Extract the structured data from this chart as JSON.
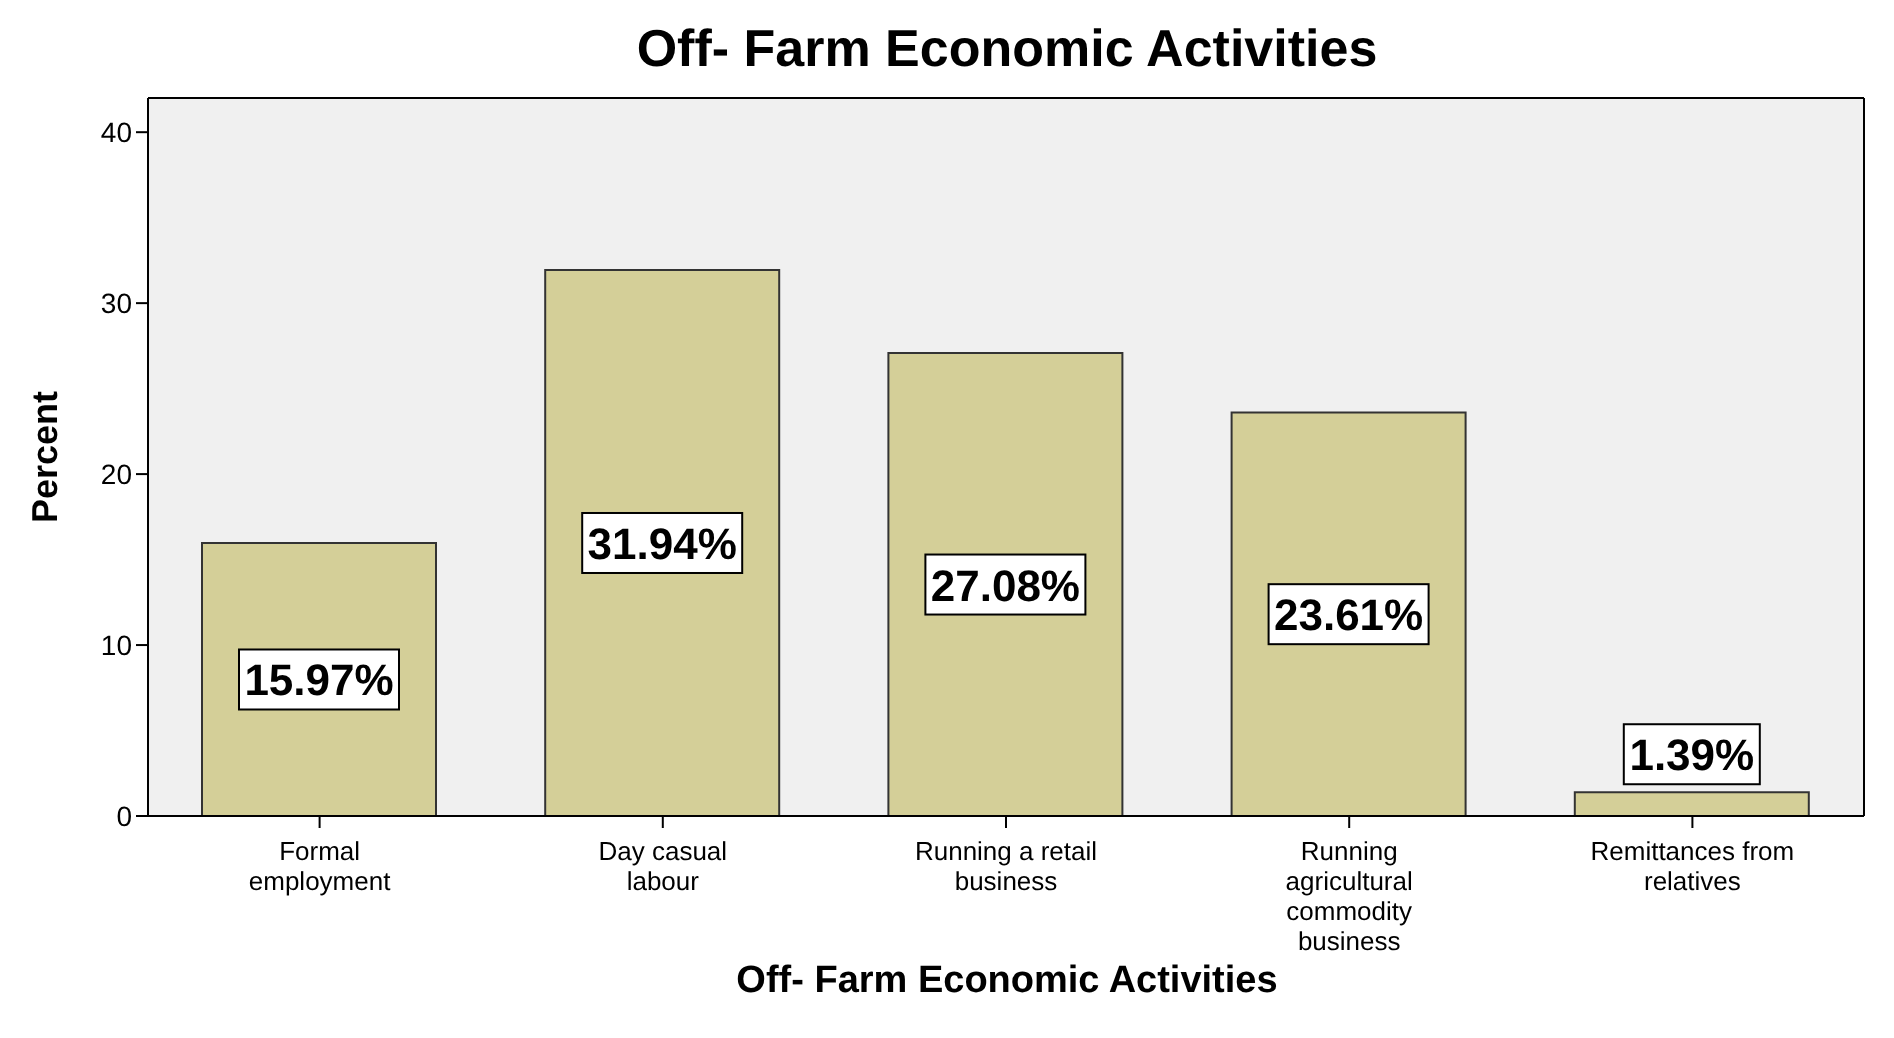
{
  "chart_data": {
    "type": "bar",
    "title": "Off- Farm Economic Activities",
    "xlabel": "Off- Farm Economic Activities",
    "ylabel": "Percent",
    "categories": [
      "Formal employment",
      "Day casual labour",
      "Running a retail business",
      "Running agricultural commodity business",
      "Remittances from relatives"
    ],
    "values": [
      15.97,
      31.94,
      27.08,
      23.61,
      1.39
    ],
    "value_labels": [
      "15.97%",
      "31.94%",
      "27.08%",
      "23.61%",
      "1.39%"
    ],
    "color": "#d4cf98",
    "ylim": [
      0,
      42
    ],
    "yticks": [
      0,
      10,
      20,
      30,
      40
    ],
    "grid": false
  }
}
